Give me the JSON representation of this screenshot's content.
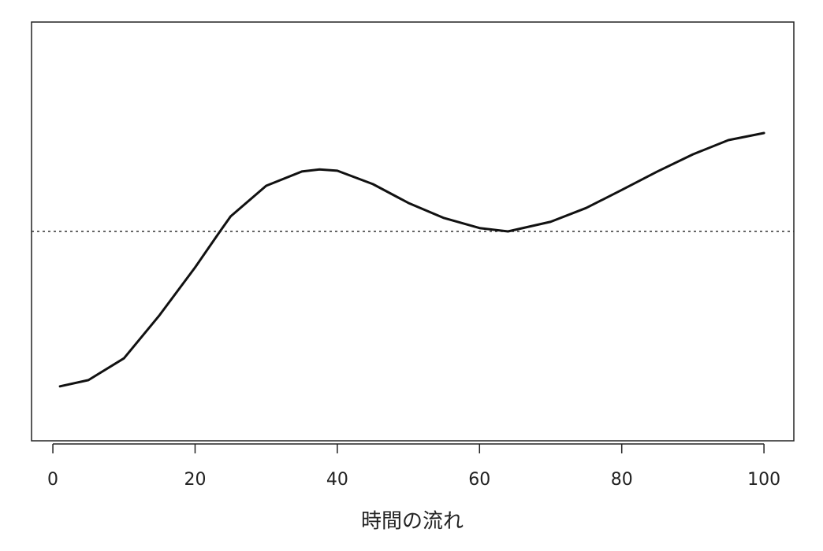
{
  "chart_data": {
    "type": "line",
    "x_label": "時間の流れ",
    "x": [
      1,
      5,
      10,
      15,
      20,
      23.5,
      25,
      30,
      35,
      37.5,
      40,
      45,
      50,
      55,
      60,
      64,
      70,
      75,
      80,
      85,
      90,
      95,
      100
    ],
    "series": [
      {
        "color": "#111111",
        "values": [
          13.0,
          14.5,
          19.7,
          30,
          41.4,
          50,
          53.6,
          60.9,
          64.3,
          64.8,
          64.5,
          61.3,
          56.8,
          53.2,
          50.8,
          50,
          52.3,
          55.6,
          59.9,
          64.3,
          68.4,
          71.8,
          73.5
        ]
      }
    ],
    "reference_line": 50,
    "xlim": [
      -3,
      104.2
    ],
    "xticks": [
      0,
      20,
      40,
      60,
      80,
      100
    ],
    "ylim": [
      0,
      100
    ]
  }
}
